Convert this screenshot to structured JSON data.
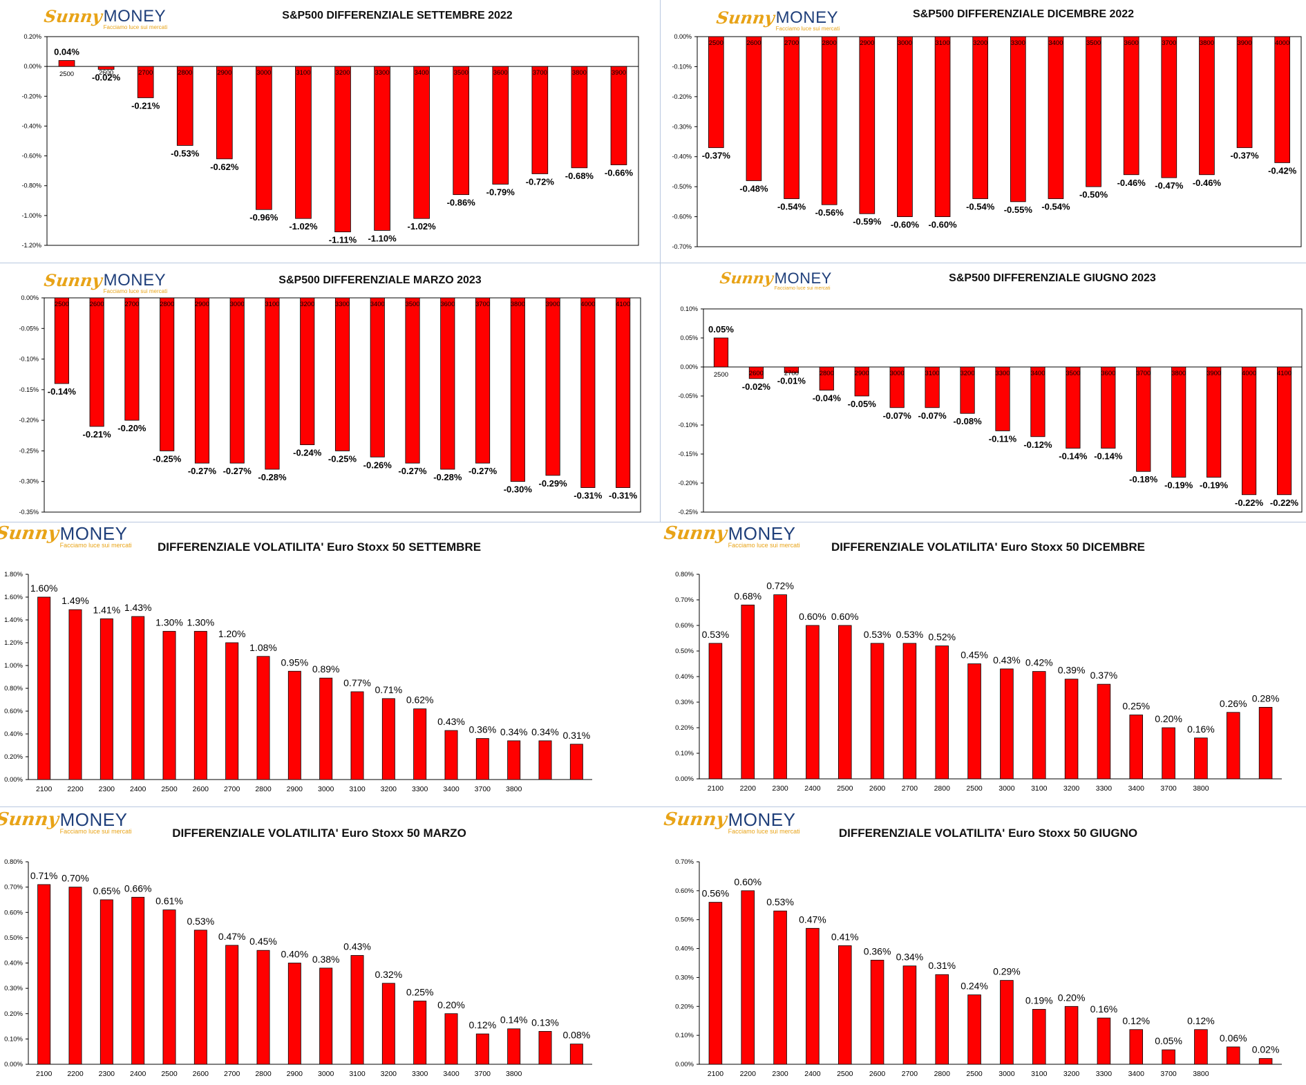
{
  "logo": {
    "sunny": "Sunny",
    "money": "MONEY",
    "tagline": "Facciamo luce sui mercati"
  },
  "colors": {
    "bar": "#ff0000",
    "bar_stroke": "#000000",
    "axis": "#000000",
    "logo_sunny": "#e8a317",
    "logo_money": "#1f3f7a"
  },
  "panels": [
    {
      "id": "sp-sep-2022",
      "title": "S&P500 DIFFERENZIALE SETTEMBRE 2022",
      "chart_data": {
        "type": "bar",
        "title": "S&P500 DIFFERENZIALE SETTEMBRE 2022",
        "xlabel": "",
        "ylabel": "",
        "categories": [
          "2500",
          "2600",
          "2700",
          "2800",
          "2900",
          "3000",
          "3100",
          "3200",
          "3300",
          "3400",
          "3500",
          "3600",
          "3700",
          "3800",
          "3900"
        ],
        "values": [
          0.04,
          -0.02,
          -0.21,
          -0.53,
          -0.62,
          -0.96,
          -1.02,
          -1.11,
          -1.1,
          -1.02,
          -0.86,
          -0.79,
          -0.72,
          -0.68,
          -0.66
        ],
        "labels": [
          "0.04%",
          "-0.02%",
          "-0.21%",
          "-0.53%",
          "-0.62%",
          "-0.96%",
          "-1.02%",
          "-1.11%",
          "-1.10%",
          "-1.02%",
          "-0.86%",
          "-0.79%",
          "-0.72%",
          "-0.68%",
          "-0.66%"
        ],
        "ylim": [
          -1.2,
          0.2
        ],
        "yticks": [
          "0.20%",
          "0.00%",
          "-0.20%",
          "-0.40%",
          "-0.60%",
          "-0.80%",
          "-1.00%",
          "-1.20%"
        ],
        "ytick_values": [
          0.2,
          0,
          -0.2,
          -0.4,
          -0.6,
          -0.8,
          -1.0,
          -1.2
        ],
        "grid": false,
        "legend": "none"
      }
    },
    {
      "id": "sp-dic-2022",
      "title": "S&P500 DIFFERENZIALE DICEMBRE 2022",
      "chart_data": {
        "type": "bar",
        "title": "S&P500 DIFFERENZIALE DICEMBRE 2022",
        "xlabel": "",
        "ylabel": "",
        "categories": [
          "2500",
          "2600",
          "2700",
          "2800",
          "2900",
          "3000",
          "3100",
          "3200",
          "3300",
          "3400",
          "3500",
          "3600",
          "3700",
          "3800",
          "3900",
          "4000"
        ],
        "values": [
          -0.37,
          -0.48,
          -0.54,
          -0.56,
          -0.59,
          -0.6,
          -0.6,
          -0.54,
          -0.55,
          -0.54,
          -0.5,
          -0.46,
          -0.47,
          -0.46,
          -0.37,
          -0.42
        ],
        "labels": [
          "-0.37%",
          "-0.48%",
          "-0.54%",
          "-0.56%",
          "-0.59%",
          "-0.60%",
          "-0.60%",
          "-0.54%",
          "-0.55%",
          "-0.54%",
          "-0.50%",
          "-0.46%",
          "-0.47%",
          "-0.46%",
          "-0.37%",
          "-0.42%"
        ],
        "ylim": [
          -0.7,
          0
        ],
        "yticks": [
          "0.00%",
          "-0.10%",
          "-0.20%",
          "-0.30%",
          "-0.40%",
          "-0.50%",
          "-0.60%",
          "-0.70%"
        ],
        "ytick_values": [
          0,
          -0.1,
          -0.2,
          -0.3,
          -0.4,
          -0.5,
          -0.6,
          -0.7
        ],
        "grid": false,
        "legend": "none"
      }
    },
    {
      "id": "sp-mar-2023",
      "title": "S&P500 DIFFERENZIALE MARZO 2023",
      "chart_data": {
        "type": "bar",
        "title": "S&P500 DIFFERENZIALE MARZO 2023",
        "xlabel": "",
        "ylabel": "",
        "categories": [
          "2500",
          "2600",
          "2700",
          "2800",
          "2900",
          "3000",
          "3100",
          "3200",
          "3300",
          "3400",
          "3500",
          "3600",
          "3700",
          "3800",
          "3900",
          "4000",
          "4100"
        ],
        "values": [
          -0.14,
          -0.21,
          -0.2,
          -0.25,
          -0.27,
          -0.27,
          -0.28,
          -0.24,
          -0.25,
          -0.26,
          -0.27,
          -0.28,
          -0.27,
          -0.3,
          -0.29,
          -0.31,
          -0.31
        ],
        "labels": [
          "-0.14%",
          "-0.21%",
          "-0.20%",
          "-0.25%",
          "-0.27%",
          "-0.27%",
          "-0.28%",
          "-0.24%",
          "-0.25%",
          "-0.26%",
          "-0.27%",
          "-0.28%",
          "-0.27%",
          "-0.30%",
          "-0.29%",
          "-0.31%",
          "-0.31%"
        ],
        "ylim": [
          -0.35,
          0
        ],
        "yticks": [
          "0.00%",
          "-0.05%",
          "-0.10%",
          "-0.15%",
          "-0.20%",
          "-0.25%",
          "-0.30%",
          "-0.35%"
        ],
        "ytick_values": [
          0,
          -0.05,
          -0.1,
          -0.15,
          -0.2,
          -0.25,
          -0.3,
          -0.35
        ],
        "grid": false,
        "legend": "none"
      }
    },
    {
      "id": "sp-giu-2023",
      "title": "S&P500 DIFFERENZIALE GIUGNO 2023",
      "chart_data": {
        "type": "bar",
        "title": "S&P500 DIFFERENZIALE GIUGNO 2023",
        "xlabel": "",
        "ylabel": "",
        "categories": [
          "2500",
          "2600",
          "2700",
          "2800",
          "2900",
          "3000",
          "3100",
          "3200",
          "3300",
          "3400",
          "3500",
          "3600",
          "3700",
          "3800",
          "3900",
          "4000",
          "4100"
        ],
        "values": [
          0.05,
          -0.02,
          -0.01,
          -0.04,
          -0.05,
          -0.07,
          -0.07,
          -0.08,
          -0.11,
          -0.12,
          -0.14,
          -0.14,
          -0.18,
          -0.19,
          -0.19,
          -0.22,
          -0.22
        ],
        "labels": [
          "0.05%",
          "-0.02%",
          "-0.01%",
          "-0.04%",
          "-0.05%",
          "-0.07%",
          "-0.07%",
          "-0.08%",
          "-0.11%",
          "-0.12%",
          "-0.14%",
          "-0.14%",
          "-0.18%",
          "-0.19%",
          "-0.19%",
          "-0.22%",
          "-0.22%"
        ],
        "ylim": [
          -0.25,
          0.1
        ],
        "yticks": [
          "0.10%",
          "0.05%",
          "0.00%",
          "-0.05%",
          "-0.10%",
          "-0.15%",
          "-0.20%",
          "-0.25%"
        ],
        "ytick_values": [
          0.1,
          0.05,
          0,
          -0.05,
          -0.1,
          -0.15,
          -0.2,
          -0.25
        ],
        "grid": false,
        "legend": "none"
      }
    },
    {
      "id": "es-set",
      "title": "DIFFERENZIALE VOLATILITA' Euro Stoxx 50 SETTEMBRE",
      "chart_data": {
        "type": "bar",
        "title": "DIFFERENZIALE VOLATILITA' Euro Stoxx 50 SETTEMBRE",
        "xlabel": "",
        "ylabel": "",
        "categories": [
          "2100",
          "2200",
          "2300",
          "2400",
          "2500",
          "2600",
          "2700",
          "2800",
          "2900",
          "3000",
          "3100",
          "3200",
          "3300",
          "3400",
          "3700",
          "3800",
          "",
          ""
        ],
        "values": [
          1.6,
          1.49,
          1.41,
          1.43,
          1.3,
          1.3,
          1.2,
          1.08,
          0.95,
          0.89,
          0.77,
          0.71,
          0.62,
          0.43,
          0.36,
          0.34,
          0.34,
          0.31
        ],
        "labels": [
          "1.60%",
          "1.49%",
          "1.41%",
          "1.43%",
          "1.30%",
          "1.30%",
          "1.20%",
          "1.08%",
          "0.95%",
          "0.89%",
          "0.77%",
          "0.71%",
          "0.62%",
          "0.43%",
          "0.36%",
          "0.34%",
          "0.34%",
          "0.31%"
        ],
        "ylim": [
          0,
          1.8
        ],
        "yticks": [
          "1.80%",
          "1.60%",
          "1.40%",
          "1.20%",
          "1.00%",
          "0.80%",
          "0.60%",
          "0.40%",
          "0.20%",
          "0.00%"
        ],
        "ytick_values": [
          1.8,
          1.6,
          1.4,
          1.2,
          1.0,
          0.8,
          0.6,
          0.4,
          0.2,
          0
        ],
        "grid": false,
        "legend": "none"
      }
    },
    {
      "id": "es-dic",
      "title": "DIFFERENZIALE VOLATILITA' Euro Stoxx 50  DICEMBRE",
      "chart_data": {
        "type": "bar",
        "title": "DIFFERENZIALE VOLATILITA' Euro Stoxx 50  DICEMBRE",
        "xlabel": "",
        "ylabel": "",
        "categories": [
          "2100",
          "2200",
          "2300",
          "2400",
          "2500",
          "2600",
          "2700",
          "2800",
          "2500",
          "3000",
          "3100",
          "3200",
          "3300",
          "3400",
          "3700",
          "3800",
          "",
          ""
        ],
        "values": [
          0.53,
          0.68,
          0.72,
          0.6,
          0.6,
          0.53,
          0.53,
          0.52,
          0.45,
          0.43,
          0.42,
          0.39,
          0.37,
          0.25,
          0.2,
          0.16,
          0.26,
          0.28
        ],
        "labels": [
          "0.53%",
          "0.68%",
          "0.72%",
          "0.60%",
          "0.60%",
          "0.53%",
          "0.53%",
          "0.52%",
          "0.45%",
          "0.43%",
          "0.42%",
          "0.39%",
          "0.37%",
          "0.25%",
          "0.20%",
          "0.16%",
          "0.26%",
          "0.28%"
        ],
        "ylim": [
          0,
          0.8
        ],
        "yticks": [
          "0.80%",
          "0.70%",
          "0.60%",
          "0.50%",
          "0.40%",
          "0.30%",
          "0.20%",
          "0.10%",
          "0.00%"
        ],
        "ytick_values": [
          0.8,
          0.7,
          0.6,
          0.5,
          0.4,
          0.3,
          0.2,
          0.1,
          0
        ],
        "grid": false,
        "legend": "none"
      }
    },
    {
      "id": "es-mar",
      "title": "DIFFERENZIALE VOLATILITA'  Euro Stoxx 50 MARZO",
      "chart_data": {
        "type": "bar",
        "title": "DIFFERENZIALE VOLATILITA'  Euro Stoxx 50 MARZO",
        "xlabel": "",
        "ylabel": "",
        "categories": [
          "2100",
          "2200",
          "2300",
          "2400",
          "2500",
          "2600",
          "2700",
          "2800",
          "2900",
          "3000",
          "3100",
          "3200",
          "3300",
          "3400",
          "3700",
          "3800",
          "",
          ""
        ],
        "values": [
          0.71,
          0.7,
          0.65,
          0.66,
          0.61,
          0.53,
          0.47,
          0.45,
          0.4,
          0.38,
          0.43,
          0.32,
          0.25,
          0.2,
          0.12,
          0.14,
          0.13,
          0.08
        ],
        "labels": [
          "0.71%",
          "0.70%",
          "0.65%",
          "0.66%",
          "0.61%",
          "0.53%",
          "0.47%",
          "0.45%",
          "0.40%",
          "0.38%",
          "0.43%",
          "0.32%",
          "0.25%",
          "0.20%",
          "0.12%",
          "0.14%",
          "0.13%",
          "0.08%"
        ],
        "ylim": [
          0,
          0.8
        ],
        "yticks": [
          "0.80%",
          "0.70%",
          "0.60%",
          "0.50%",
          "0.40%",
          "0.30%",
          "0.20%",
          "0.10%",
          "0.00%"
        ],
        "ytick_values": [
          0.8,
          0.7,
          0.6,
          0.5,
          0.4,
          0.3,
          0.2,
          0.1,
          0
        ],
        "grid": false,
        "legend": "none"
      }
    },
    {
      "id": "es-giu",
      "title": "DIFFERENZIALE VOLATILITA'  Euro Stoxx 50 GIUGNO",
      "chart_data": {
        "type": "bar",
        "title": "DIFFERENZIALE VOLATILITA'  Euro Stoxx 50 GIUGNO",
        "xlabel": "",
        "ylabel": "",
        "categories": [
          "2100",
          "2200",
          "2300",
          "2400",
          "2500",
          "2600",
          "2700",
          "2800",
          "2500",
          "3000",
          "3100",
          "3200",
          "3300",
          "3400",
          "3700",
          "3800",
          "",
          ""
        ],
        "values": [
          0.56,
          0.6,
          0.53,
          0.47,
          0.41,
          0.36,
          0.34,
          0.31,
          0.24,
          0.29,
          0.19,
          0.2,
          0.16,
          0.12,
          0.05,
          0.12,
          0.06,
          0.02
        ],
        "labels": [
          "0.56%",
          "0.60%",
          "0.53%",
          "0.47%",
          "0.41%",
          "0.36%",
          "0.34%",
          "0.31%",
          "0.24%",
          "0.29%",
          "0.19%",
          "0.20%",
          "0.16%",
          "0.12%",
          "0.05%",
          "0.12%",
          "0.06%",
          "0.02%"
        ],
        "ylim": [
          0,
          0.7
        ],
        "yticks": [
          "0.70%",
          "0.60%",
          "0.50%",
          "0.40%",
          "0.30%",
          "0.20%",
          "0.10%",
          "0.00%"
        ],
        "ytick_values": [
          0.7,
          0.6,
          0.5,
          0.4,
          0.3,
          0.2,
          0.1,
          0
        ],
        "grid": false,
        "legend": "none"
      }
    }
  ]
}
